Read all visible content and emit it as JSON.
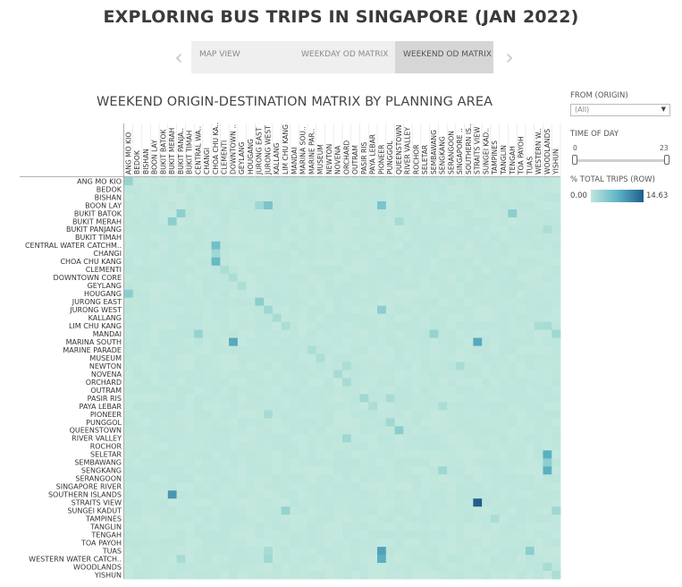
{
  "title": "EXPLORING BUS TRIPS IN SINGAPORE (JAN 2022)",
  "tabs": [
    {
      "label": "MAP VIEW",
      "active": false
    },
    {
      "label": "WEEKDAY OD MATRIX",
      "active": false
    },
    {
      "label": "WEEKEND OD MATRIX",
      "active": true
    }
  ],
  "nav": {
    "prev_icon": "chevron-left-icon",
    "next_icon": "chevron-right-icon"
  },
  "chart_title": "WEEKEND ORIGIN-DESTINATION MATRIX BY PLANNING AREA",
  "filters": {
    "origin_label": "FROM (ORIGIN)",
    "origin_value": "(All)",
    "time_label": "TIME OF DAY",
    "time_min": "0",
    "time_max": "23",
    "time_range_selected": [
      0,
      23
    ]
  },
  "legend": {
    "label": "% TOTAL TRIPS (ROW)",
    "min": "0.00",
    "max": "14.63",
    "colors": {
      "low": "#bfe5dc",
      "mid": "#5fb6c8",
      "high": "#1f5e8c"
    }
  },
  "chart_data": {
    "type": "heatmap",
    "title": "WEEKEND ORIGIN-DESTINATION MATRIX BY PLANNING AREA",
    "columns": [
      "ANG MO KIO",
      "BEDOK",
      "BISHAN",
      "BOON LAY",
      "BUKIT BATOK",
      "BUKIT MERAH",
      "BUKIT PANJA..",
      "BUKIT TIMAH",
      "CENTRAL WA..",
      "CHANGI",
      "CHOA CHU KA..",
      "CLEMENTI",
      "DOWNTOWN ..",
      "GEYLANG",
      "HOUGANG",
      "JURONG EAST",
      "JURONG WEST",
      "KALLANG",
      "LIM CHU KANG",
      "MANDAI",
      "MARINA SOU..",
      "MARINE PAR..",
      "MUSEUM",
      "NEWTON",
      "NOVENA",
      "ORCHARD",
      "OUTRAM",
      "PASIR RIS",
      "PAYA LEBAR",
      "PIONEER",
      "PUNGGOL",
      "QUEENSTOWN",
      "RIVER VALLEY",
      "ROCHOR",
      "SELETAR",
      "SEMBAWANG",
      "SENGKANG",
      "SERANGOON",
      "SINGAPORE ..",
      "SOUTHERN IS..",
      "STRAITS VIEW",
      "SUNGEI KAD..",
      "TAMPINES",
      "TANGLIN",
      "TENGAH",
      "TOA PAYOH",
      "TUAS",
      "WESTERN W..",
      "WOODLANDS",
      "YISHUN"
    ],
    "rows": [
      "ANG MO KIO",
      "BEDOK",
      "BISHAN",
      "BOON LAY",
      "BUKIT BATOK",
      "BUKIT MERAH",
      "BUKIT PANJANG",
      "BUKIT TIMAH",
      "CENTRAL WATER CATCHM..",
      "CHANGI",
      "CHOA CHU KANG",
      "CLEMENTI",
      "DOWNTOWN CORE",
      "GEYLANG",
      "HOUGANG",
      "JURONG EAST",
      "JURONG WEST",
      "KALLANG",
      "LIM CHU KANG",
      "MANDAI",
      "MARINA SOUTH",
      "MARINE PARADE",
      "MUSEUM",
      "NEWTON",
      "NOVENA",
      "ORCHARD",
      "OUTRAM",
      "PASIR RIS",
      "PAYA LEBAR",
      "PIONEER",
      "PUNGGOL",
      "QUEENSTOWN",
      "RIVER VALLEY",
      "ROCHOR",
      "SELETAR",
      "SEMBAWANG",
      "SENGKANG",
      "SERANGOON",
      "SINGAPORE RIVER",
      "SOUTHERN ISLANDS",
      "STRAITS VIEW",
      "SUNGEI KADUT",
      "TAMPINES",
      "TANGLIN",
      "TENGAH",
      "TOA PAYOH",
      "TUAS",
      "WESTERN WATER CATCH..",
      "WOODLANDS",
      "YISHUN"
    ],
    "value_range": [
      0.0,
      14.63
    ],
    "baseline": 1.0,
    "highlights": [
      {
        "row": "ANG MO KIO",
        "col": "ANG MO KIO",
        "value": 4.5
      },
      {
        "row": "BOON LAY",
        "col": "JURONG WEST",
        "value": 6.0
      },
      {
        "row": "BOON LAY",
        "col": "PIONEER",
        "value": 6.0
      },
      {
        "row": "BOON LAY",
        "col": "JURONG EAST",
        "value": 4.0
      },
      {
        "row": "BUKIT BATOK",
        "col": "BUKIT PANJA..",
        "value": 5.0
      },
      {
        "row": "BUKIT BATOK",
        "col": "TENGAH",
        "value": 5.0
      },
      {
        "row": "BUKIT MERAH",
        "col": "BUKIT MERAH",
        "value": 5.0
      },
      {
        "row": "BUKIT MERAH",
        "col": "QUEENSTOWN",
        "value": 3.5
      },
      {
        "row": "BUKIT PANJANG",
        "col": "WOODLANDS",
        "value": 3.0
      },
      {
        "row": "CENTRAL WATER CATCHM..",
        "col": "CHOA CHU KA..",
        "value": 6.5
      },
      {
        "row": "CHANGI",
        "col": "CHOA CHU KA..",
        "value": 4.0
      },
      {
        "row": "CHOA CHU KANG",
        "col": "CHOA CHU KA..",
        "value": 7.0
      },
      {
        "row": "CLEMENTI",
        "col": "CLEMENTI",
        "value": 3.0
      },
      {
        "row": "DOWNTOWN CORE",
        "col": "DOWNTOWN ..",
        "value": 3.0
      },
      {
        "row": "GEYLANG",
        "col": "GEYLANG",
        "value": 3.0
      },
      {
        "row": "HOUGANG",
        "col": "ANG MO KIO",
        "value": 5.0
      },
      {
        "row": "JURONG EAST",
        "col": "JURONG EAST",
        "value": 5.0
      },
      {
        "row": "JURONG WEST",
        "col": "JURONG WEST",
        "value": 4.0
      },
      {
        "row": "JURONG WEST",
        "col": "PIONEER",
        "value": 5.0
      },
      {
        "row": "KALLANG",
        "col": "KALLANG",
        "value": 3.5
      },
      {
        "row": "LIM CHU KANG",
        "col": "LIM CHU KANG",
        "value": 3.0
      },
      {
        "row": "LIM CHU KANG",
        "col": "WOODLANDS",
        "value": 3.5
      },
      {
        "row": "LIM CHU KANG",
        "col": "WESTERN W..",
        "value": 3.0
      },
      {
        "row": "MANDAI",
        "col": "CENTRAL WA..",
        "value": 4.5
      },
      {
        "row": "MANDAI",
        "col": "SEMBAWANG",
        "value": 4.5
      },
      {
        "row": "MANDAI",
        "col": "YISHUN",
        "value": 4.0
      },
      {
        "row": "MARINA SOUTH",
        "col": "DOWNTOWN ..",
        "value": 8.5
      },
      {
        "row": "MARINA SOUTH",
        "col": "STRAITS VIEW",
        "value": 8.5
      },
      {
        "row": "MARINE PARADE",
        "col": "MARINE PAR..",
        "value": 3.0
      },
      {
        "row": "MUSEUM",
        "col": "MUSEUM",
        "value": 3.0
      },
      {
        "row": "NEWTON",
        "col": "ORCHARD",
        "value": 3.0
      },
      {
        "row": "NEWTON",
        "col": "SINGAPORE ..",
        "value": 3.5
      },
      {
        "row": "NOVENA",
        "col": "NOVENA",
        "value": 3.5
      },
      {
        "row": "ORCHARD",
        "col": "ORCHARD",
        "value": 3.5
      },
      {
        "row": "PASIR RIS",
        "col": "PASIR RIS",
        "value": 4.0
      },
      {
        "row": "PASIR RIS",
        "col": "PUNGGOL",
        "value": 3.5
      },
      {
        "row": "PAYA LEBAR",
        "col": "PAYA LEBAR",
        "value": 3.0
      },
      {
        "row": "PAYA LEBAR",
        "col": "SENGKANG",
        "value": 3.0
      },
      {
        "row": "PIONEER",
        "col": "JURONG WEST",
        "value": 3.5
      },
      {
        "row": "PUNGGOL",
        "col": "PUNGGOL",
        "value": 4.0
      },
      {
        "row": "QUEENSTOWN",
        "col": "QUEENSTOWN",
        "value": 5.0
      },
      {
        "row": "RIVER VALLEY",
        "col": "ORCHARD",
        "value": 4.0
      },
      {
        "row": "SELETAR",
        "col": "WOODLANDS",
        "value": 8.0
      },
      {
        "row": "SEMBAWANG",
        "col": "WOODLANDS",
        "value": 5.0
      },
      {
        "row": "SENGKANG",
        "col": "WOODLANDS",
        "value": 8.0
      },
      {
        "row": "SENGKANG",
        "col": "SENGKANG",
        "value": 4.0
      },
      {
        "row": "SOUTHERN ISLANDS",
        "col": "BUKIT MERAH",
        "value": 10.0
      },
      {
        "row": "STRAITS VIEW",
        "col": "STRAITS VIEW",
        "value": 14.63
      },
      {
        "row": "SUNGEI KADUT",
        "col": "LIM CHU KANG",
        "value": 4.5
      },
      {
        "row": "SUNGEI KADUT",
        "col": "YISHUN",
        "value": 4.0
      },
      {
        "row": "TAMPINES",
        "col": "TAMPINES",
        "value": 3.0
      },
      {
        "row": "TUAS",
        "col": "PIONEER",
        "value": 9.0
      },
      {
        "row": "TUAS",
        "col": "TUAS",
        "value": 5.0
      },
      {
        "row": "TUAS",
        "col": "JURONG WEST",
        "value": 3.5
      },
      {
        "row": "WESTERN WATER CATCH..",
        "col": "PIONEER",
        "value": 8.0
      },
      {
        "row": "WESTERN WATER CATCH..",
        "col": "JURONG WEST",
        "value": 4.0
      },
      {
        "row": "WESTERN WATER CATCH..",
        "col": "BUKIT PANJA..",
        "value": 3.5
      },
      {
        "row": "WOODLANDS",
        "col": "WOODLANDS",
        "value": 3.5
      },
      {
        "row": "YISHUN",
        "col": "YISHUN",
        "value": 3.0
      }
    ]
  }
}
